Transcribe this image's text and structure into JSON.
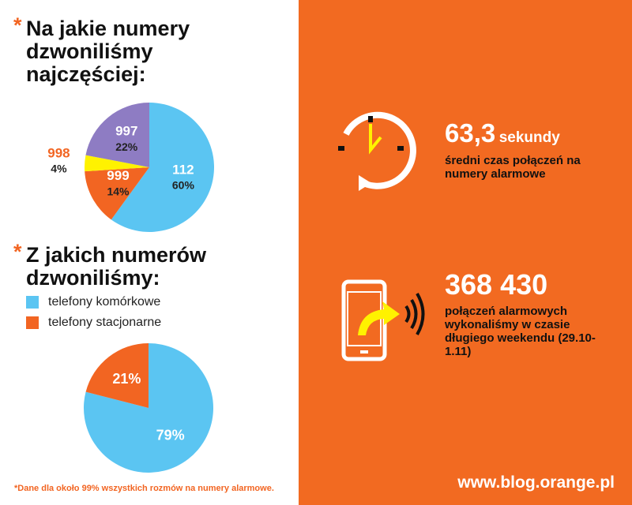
{
  "marker": "*",
  "chart_data": [
    {
      "type": "pie",
      "title": "Na jakie numery dzwoniliśmy najczęściej:",
      "categories": [
        "112",
        "999",
        "998",
        "997"
      ],
      "values": [
        60,
        14,
        4,
        22
      ],
      "value_labels": [
        "60%",
        "14%",
        "4%",
        "22%"
      ],
      "colors": [
        "#5bc5f2",
        "#f26522",
        "#fff200",
        "#8e7cc3"
      ]
    },
    {
      "type": "pie",
      "title": "Z jakich numerów dzwoniliśmy:",
      "categories": [
        "telefony komórkowe",
        "telefony stacjonarne"
      ],
      "values": [
        79,
        21
      ],
      "value_labels": [
        "79%",
        "21%"
      ],
      "colors": [
        "#5bc5f2",
        "#f26522"
      ],
      "legend": true
    }
  ],
  "stats": [
    {
      "value": "63,3",
      "unit": "sekundy",
      "description": "średni czas połączeń na numery alarmowe"
    },
    {
      "value": "368 430",
      "description": "połączeń alarmowych wykonaliśmy w czasie długiego weekendu (29.10-1.11)"
    }
  ],
  "footnote": "*Dane dla około 99% wszystkich rozmów na numery alarmowe.",
  "url": "www.blog.orange.pl"
}
